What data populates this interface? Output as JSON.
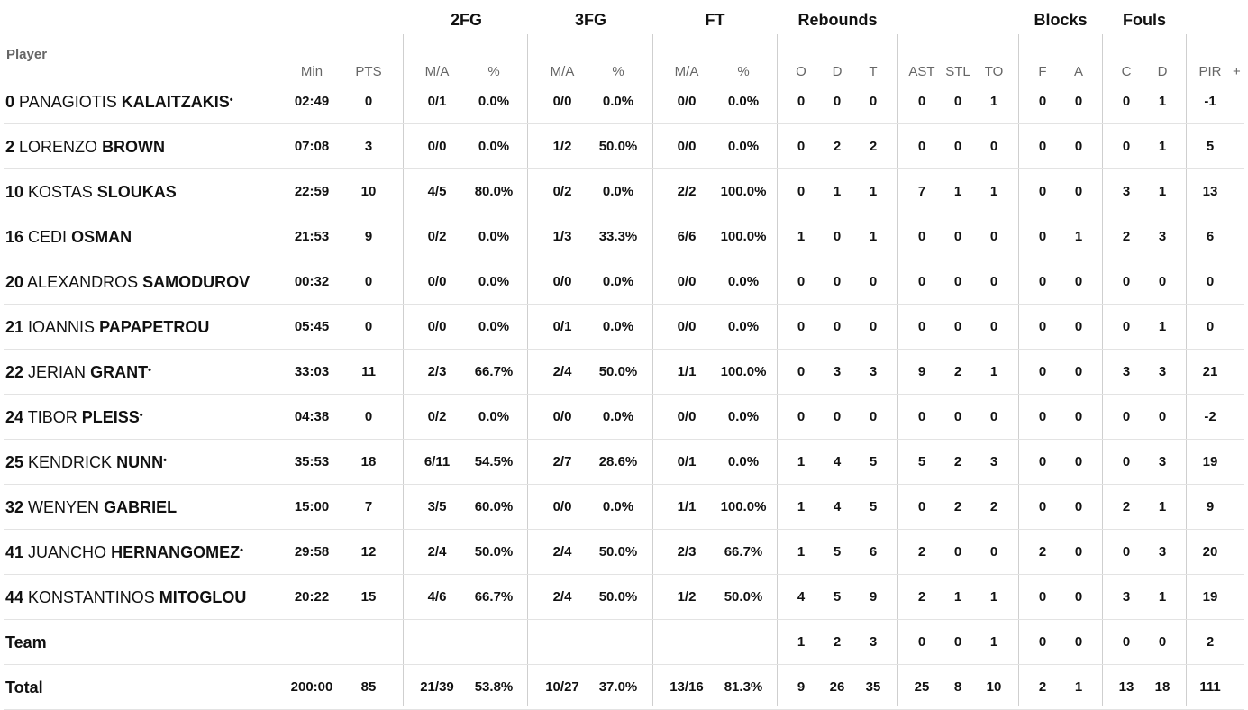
{
  "groups": {
    "fg2": "2FG",
    "fg3": "3FG",
    "ft": "FT",
    "rebounds": "Rebounds",
    "blocks": "Blocks",
    "fouls": "Fouls"
  },
  "columns": {
    "player": "Player",
    "min": "Min",
    "pts": "PTS",
    "fg2_ma": "M/A",
    "fg2_pct": "%",
    "fg3_ma": "M/A",
    "fg3_pct": "%",
    "ft_ma": "M/A",
    "ft_pct": "%",
    "reb_o": "O",
    "reb_d": "D",
    "reb_t": "T",
    "ast": "AST",
    "stl": "STL",
    "to": "TO",
    "blk_f": "F",
    "blk_a": "A",
    "foul_c": "C",
    "foul_d": "D",
    "pir": "PIR",
    "plus": "+"
  },
  "starter_marker": "•",
  "players": [
    {
      "number": "0",
      "first": "PANAGIOTIS",
      "last": "KALAITZAKIS",
      "starter": true,
      "min": "02:49",
      "pts": "0",
      "fg2_ma": "0/1",
      "fg2_pct": "0.0%",
      "fg3_ma": "0/0",
      "fg3_pct": "0.0%",
      "ft_ma": "0/0",
      "ft_pct": "0.0%",
      "reb_o": "0",
      "reb_d": "0",
      "reb_t": "0",
      "ast": "0",
      "stl": "0",
      "to": "1",
      "blk_f": "0",
      "blk_a": "0",
      "foul_c": "0",
      "foul_d": "1",
      "pir": "-1"
    },
    {
      "number": "2",
      "first": "LORENZO",
      "last": "BROWN",
      "starter": false,
      "min": "07:08",
      "pts": "3",
      "fg2_ma": "0/0",
      "fg2_pct": "0.0%",
      "fg3_ma": "1/2",
      "fg3_pct": "50.0%",
      "ft_ma": "0/0",
      "ft_pct": "0.0%",
      "reb_o": "0",
      "reb_d": "2",
      "reb_t": "2",
      "ast": "0",
      "stl": "0",
      "to": "0",
      "blk_f": "0",
      "blk_a": "0",
      "foul_c": "0",
      "foul_d": "1",
      "pir": "5"
    },
    {
      "number": "10",
      "first": "KOSTAS",
      "last": "SLOUKAS",
      "starter": false,
      "min": "22:59",
      "pts": "10",
      "fg2_ma": "4/5",
      "fg2_pct": "80.0%",
      "fg3_ma": "0/2",
      "fg3_pct": "0.0%",
      "ft_ma": "2/2",
      "ft_pct": "100.0%",
      "reb_o": "0",
      "reb_d": "1",
      "reb_t": "1",
      "ast": "7",
      "stl": "1",
      "to": "1",
      "blk_f": "0",
      "blk_a": "0",
      "foul_c": "3",
      "foul_d": "1",
      "pir": "13"
    },
    {
      "number": "16",
      "first": "CEDI",
      "last": "OSMAN",
      "starter": false,
      "min": "21:53",
      "pts": "9",
      "fg2_ma": "0/2",
      "fg2_pct": "0.0%",
      "fg3_ma": "1/3",
      "fg3_pct": "33.3%",
      "ft_ma": "6/6",
      "ft_pct": "100.0%",
      "reb_o": "1",
      "reb_d": "0",
      "reb_t": "1",
      "ast": "0",
      "stl": "0",
      "to": "0",
      "blk_f": "0",
      "blk_a": "1",
      "foul_c": "2",
      "foul_d": "3",
      "pir": "6"
    },
    {
      "number": "20",
      "first": "ALEXANDROS",
      "last": "SAMODUROV",
      "starter": false,
      "min": "00:32",
      "pts": "0",
      "fg2_ma": "0/0",
      "fg2_pct": "0.0%",
      "fg3_ma": "0/0",
      "fg3_pct": "0.0%",
      "ft_ma": "0/0",
      "ft_pct": "0.0%",
      "reb_o": "0",
      "reb_d": "0",
      "reb_t": "0",
      "ast": "0",
      "stl": "0",
      "to": "0",
      "blk_f": "0",
      "blk_a": "0",
      "foul_c": "0",
      "foul_d": "0",
      "pir": "0"
    },
    {
      "number": "21",
      "first": "IOANNIS",
      "last": "PAPAPETROU",
      "starter": false,
      "min": "05:45",
      "pts": "0",
      "fg2_ma": "0/0",
      "fg2_pct": "0.0%",
      "fg3_ma": "0/1",
      "fg3_pct": "0.0%",
      "ft_ma": "0/0",
      "ft_pct": "0.0%",
      "reb_o": "0",
      "reb_d": "0",
      "reb_t": "0",
      "ast": "0",
      "stl": "0",
      "to": "0",
      "blk_f": "0",
      "blk_a": "0",
      "foul_c": "0",
      "foul_d": "1",
      "pir": "0"
    },
    {
      "number": "22",
      "first": "JERIAN",
      "last": "GRANT",
      "starter": true,
      "min": "33:03",
      "pts": "11",
      "fg2_ma": "2/3",
      "fg2_pct": "66.7%",
      "fg3_ma": "2/4",
      "fg3_pct": "50.0%",
      "ft_ma": "1/1",
      "ft_pct": "100.0%",
      "reb_o": "0",
      "reb_d": "3",
      "reb_t": "3",
      "ast": "9",
      "stl": "2",
      "to": "1",
      "blk_f": "0",
      "blk_a": "0",
      "foul_c": "3",
      "foul_d": "3",
      "pir": "21"
    },
    {
      "number": "24",
      "first": "TIBOR",
      "last": "PLEISS",
      "starter": true,
      "min": "04:38",
      "pts": "0",
      "fg2_ma": "0/2",
      "fg2_pct": "0.0%",
      "fg3_ma": "0/0",
      "fg3_pct": "0.0%",
      "ft_ma": "0/0",
      "ft_pct": "0.0%",
      "reb_o": "0",
      "reb_d": "0",
      "reb_t": "0",
      "ast": "0",
      "stl": "0",
      "to": "0",
      "blk_f": "0",
      "blk_a": "0",
      "foul_c": "0",
      "foul_d": "0",
      "pir": "-2"
    },
    {
      "number": "25",
      "first": "KENDRICK",
      "last": "NUNN",
      "starter": true,
      "min": "35:53",
      "pts": "18",
      "fg2_ma": "6/11",
      "fg2_pct": "54.5%",
      "fg3_ma": "2/7",
      "fg3_pct": "28.6%",
      "ft_ma": "0/1",
      "ft_pct": "0.0%",
      "reb_o": "1",
      "reb_d": "4",
      "reb_t": "5",
      "ast": "5",
      "stl": "2",
      "to": "3",
      "blk_f": "0",
      "blk_a": "0",
      "foul_c": "0",
      "foul_d": "3",
      "pir": "19"
    },
    {
      "number": "32",
      "first": "WENYEN",
      "last": "GABRIEL",
      "starter": false,
      "min": "15:00",
      "pts": "7",
      "fg2_ma": "3/5",
      "fg2_pct": "60.0%",
      "fg3_ma": "0/0",
      "fg3_pct": "0.0%",
      "ft_ma": "1/1",
      "ft_pct": "100.0%",
      "reb_o": "1",
      "reb_d": "4",
      "reb_t": "5",
      "ast": "0",
      "stl": "2",
      "to": "2",
      "blk_f": "0",
      "blk_a": "0",
      "foul_c": "2",
      "foul_d": "1",
      "pir": "9"
    },
    {
      "number": "41",
      "first": "JUANCHO",
      "last": "HERNANGOMEZ",
      "starter": true,
      "min": "29:58",
      "pts": "12",
      "fg2_ma": "2/4",
      "fg2_pct": "50.0%",
      "fg3_ma": "2/4",
      "fg3_pct": "50.0%",
      "ft_ma": "2/3",
      "ft_pct": "66.7%",
      "reb_o": "1",
      "reb_d": "5",
      "reb_t": "6",
      "ast": "2",
      "stl": "0",
      "to": "0",
      "blk_f": "2",
      "blk_a": "0",
      "foul_c": "0",
      "foul_d": "3",
      "pir": "20"
    },
    {
      "number": "44",
      "first": "KONSTANTINOS",
      "last": "MITOGLOU",
      "starter": false,
      "min": "20:22",
      "pts": "15",
      "fg2_ma": "4/6",
      "fg2_pct": "66.7%",
      "fg3_ma": "2/4",
      "fg3_pct": "50.0%",
      "ft_ma": "1/2",
      "ft_pct": "50.0%",
      "reb_o": "4",
      "reb_d": "5",
      "reb_t": "9",
      "ast": "2",
      "stl": "1",
      "to": "1",
      "blk_f": "0",
      "blk_a": "0",
      "foul_c": "3",
      "foul_d": "1",
      "pir": "19"
    }
  ],
  "team": {
    "label": "Team",
    "min": "",
    "pts": "",
    "fg2_ma": "",
    "fg2_pct": "",
    "fg3_ma": "",
    "fg3_pct": "",
    "ft_ma": "",
    "ft_pct": "",
    "reb_o": "1",
    "reb_d": "2",
    "reb_t": "3",
    "ast": "0",
    "stl": "0",
    "to": "1",
    "blk_f": "0",
    "blk_a": "0",
    "foul_c": "0",
    "foul_d": "0",
    "pir": "2"
  },
  "total": {
    "label": "Total",
    "min": "200:00",
    "pts": "85",
    "fg2_ma": "21/39",
    "fg2_pct": "53.8%",
    "fg3_ma": "10/27",
    "fg3_pct": "37.0%",
    "ft_ma": "13/16",
    "ft_pct": "81.3%",
    "reb_o": "9",
    "reb_d": "26",
    "reb_t": "35",
    "ast": "25",
    "stl": "8",
    "to": "10",
    "blk_f": "2",
    "blk_a": "1",
    "foul_c": "13",
    "foul_d": "18",
    "pir": "111"
  }
}
